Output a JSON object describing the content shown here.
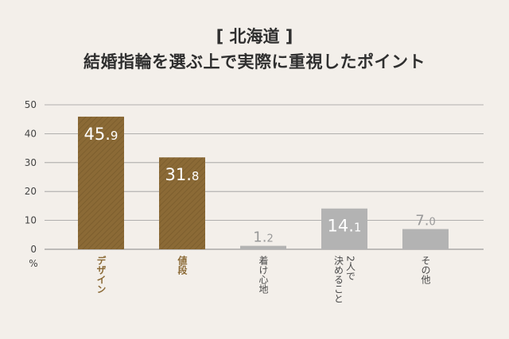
{
  "title_region": "[ 北海道 ]",
  "title_main": "結婚指輪を選ぶ上で実際に重視したポイント",
  "colors": {
    "highlight": "#8b6a36",
    "highlight_stripe": "#7a5c2c",
    "muted": "#b3b3b3",
    "muted_label": "#4a4a4a",
    "value_muted": "#999999",
    "grid": "#9a9a9a",
    "tick": "#444444"
  },
  "chart_data": {
    "type": "bar",
    "ylabel": "%",
    "ylim": [
      0,
      50
    ],
    "yticks": [
      0,
      10,
      20,
      30,
      40,
      50
    ],
    "grid": true,
    "categories": [
      "デザイン",
      "値段",
      "着け心地",
      "2人で決めること",
      "その他"
    ],
    "category_lines": [
      [
        "デザイン"
      ],
      [
        "値段"
      ],
      [
        "着け心地"
      ],
      [
        "2人で",
        "決めること"
      ],
      [
        "その他"
      ]
    ],
    "values": [
      45.9,
      31.8,
      1.2,
      14.1,
      7.0
    ],
    "value_labels": [
      {
        "int": "45.",
        "dec": "9"
      },
      {
        "int": "31.",
        "dec": "8"
      },
      {
        "int": "1.",
        "dec": "2"
      },
      {
        "int": "14.",
        "dec": "1"
      },
      {
        "int": "7.",
        "dec": "0"
      }
    ],
    "highlighted": [
      true,
      true,
      false,
      false,
      false
    ]
  }
}
